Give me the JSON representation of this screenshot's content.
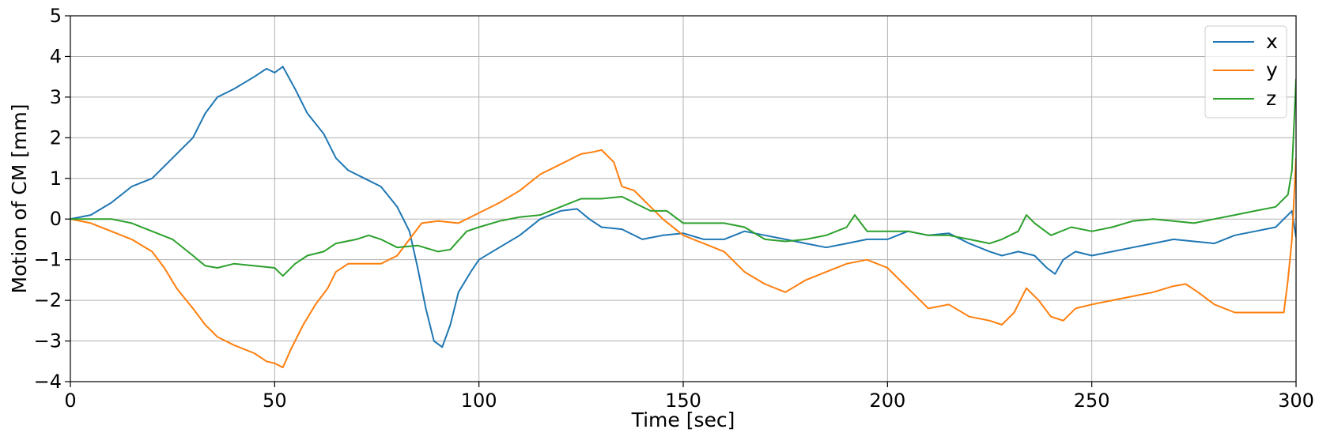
{
  "chart_data": {
    "type": "line",
    "xlabel": "Time [sec]",
    "ylabel": "Motion of CM [mm]",
    "xlim": [
      0,
      300
    ],
    "ylim": [
      -4,
      5
    ],
    "xticks": [
      0,
      50,
      100,
      150,
      200,
      250,
      300
    ],
    "yticks": [
      -4,
      -3,
      -2,
      -1,
      0,
      1,
      2,
      3,
      4,
      5
    ],
    "xtick_labels": [
      "0",
      "50",
      "100",
      "150",
      "200",
      "250",
      "300"
    ],
    "ytick_labels": [
      "−4",
      "−3",
      "−2",
      "−1",
      "0",
      "1",
      "2",
      "3",
      "4",
      "5"
    ],
    "grid": true,
    "legend_position": "top-right",
    "series": [
      {
        "name": "x",
        "color": "#1f77b4",
        "points": [
          [
            0,
            0
          ],
          [
            5,
            0.1
          ],
          [
            10,
            0.4
          ],
          [
            15,
            0.8
          ],
          [
            20,
            1.0
          ],
          [
            25,
            1.5
          ],
          [
            30,
            2.0
          ],
          [
            33,
            2.6
          ],
          [
            36,
            3.0
          ],
          [
            40,
            3.2
          ],
          [
            45,
            3.5
          ],
          [
            48,
            3.7
          ],
          [
            50,
            3.6
          ],
          [
            52,
            3.75
          ],
          [
            55,
            3.2
          ],
          [
            58,
            2.6
          ],
          [
            62,
            2.1
          ],
          [
            65,
            1.5
          ],
          [
            68,
            1.2
          ],
          [
            72,
            1.0
          ],
          [
            76,
            0.8
          ],
          [
            80,
            0.3
          ],
          [
            83,
            -0.3
          ],
          [
            85,
            -1.2
          ],
          [
            87,
            -2.2
          ],
          [
            89,
            -3.0
          ],
          [
            91,
            -3.15
          ],
          [
            93,
            -2.6
          ],
          [
            95,
            -1.8
          ],
          [
            98,
            -1.3
          ],
          [
            100,
            -1.0
          ],
          [
            105,
            -0.7
          ],
          [
            110,
            -0.4
          ],
          [
            115,
            0.0
          ],
          [
            120,
            0.2
          ],
          [
            124,
            0.25
          ],
          [
            127,
            0.0
          ],
          [
            130,
            -0.2
          ],
          [
            135,
            -0.25
          ],
          [
            140,
            -0.5
          ],
          [
            145,
            -0.4
          ],
          [
            150,
            -0.35
          ],
          [
            155,
            -0.5
          ],
          [
            160,
            -0.5
          ],
          [
            165,
            -0.3
          ],
          [
            170,
            -0.4
          ],
          [
            175,
            -0.5
          ],
          [
            180,
            -0.6
          ],
          [
            185,
            -0.7
          ],
          [
            190,
            -0.6
          ],
          [
            195,
            -0.5
          ],
          [
            200,
            -0.5
          ],
          [
            205,
            -0.3
          ],
          [
            210,
            -0.4
          ],
          [
            215,
            -0.35
          ],
          [
            220,
            -0.6
          ],
          [
            225,
            -0.8
          ],
          [
            228,
            -0.9
          ],
          [
            232,
            -0.8
          ],
          [
            236,
            -0.9
          ],
          [
            239,
            -1.2
          ],
          [
            241,
            -1.35
          ],
          [
            243,
            -1.0
          ],
          [
            246,
            -0.8
          ],
          [
            250,
            -0.9
          ],
          [
            255,
            -0.8
          ],
          [
            260,
            -0.7
          ],
          [
            265,
            -0.6
          ],
          [
            270,
            -0.5
          ],
          [
            275,
            -0.55
          ],
          [
            280,
            -0.6
          ],
          [
            285,
            -0.4
          ],
          [
            290,
            -0.3
          ],
          [
            295,
            -0.2
          ],
          [
            298,
            0.1
          ],
          [
            299,
            0.2
          ],
          [
            300,
            -0.45
          ]
        ]
      },
      {
        "name": "y",
        "color": "#ff7f0e",
        "points": [
          [
            0,
            0
          ],
          [
            5,
            -0.1
          ],
          [
            10,
            -0.3
          ],
          [
            15,
            -0.5
          ],
          [
            20,
            -0.8
          ],
          [
            23,
            -1.2
          ],
          [
            26,
            -1.7
          ],
          [
            30,
            -2.2
          ],
          [
            33,
            -2.6
          ],
          [
            36,
            -2.9
          ],
          [
            40,
            -3.1
          ],
          [
            45,
            -3.3
          ],
          [
            48,
            -3.5
          ],
          [
            50,
            -3.55
          ],
          [
            52,
            -3.65
          ],
          [
            54,
            -3.2
          ],
          [
            57,
            -2.6
          ],
          [
            60,
            -2.1
          ],
          [
            63,
            -1.7
          ],
          [
            65,
            -1.3
          ],
          [
            68,
            -1.1
          ],
          [
            72,
            -1.1
          ],
          [
            76,
            -1.1
          ],
          [
            80,
            -0.9
          ],
          [
            83,
            -0.5
          ],
          [
            86,
            -0.1
          ],
          [
            90,
            -0.05
          ],
          [
            95,
            -0.1
          ],
          [
            100,
            0.15
          ],
          [
            105,
            0.4
          ],
          [
            110,
            0.7
          ],
          [
            115,
            1.1
          ],
          [
            120,
            1.35
          ],
          [
            125,
            1.6
          ],
          [
            128,
            1.65
          ],
          [
            130,
            1.7
          ],
          [
            133,
            1.4
          ],
          [
            135,
            0.8
          ],
          [
            138,
            0.7
          ],
          [
            142,
            0.3
          ],
          [
            145,
            0.0
          ],
          [
            150,
            -0.4
          ],
          [
            155,
            -0.6
          ],
          [
            160,
            -0.8
          ],
          [
            165,
            -1.3
          ],
          [
            170,
            -1.6
          ],
          [
            175,
            -1.8
          ],
          [
            180,
            -1.5
          ],
          [
            185,
            -1.3
          ],
          [
            190,
            -1.1
          ],
          [
            195,
            -1.0
          ],
          [
            200,
            -1.2
          ],
          [
            203,
            -1.5
          ],
          [
            206,
            -1.8
          ],
          [
            210,
            -2.2
          ],
          [
            215,
            -2.1
          ],
          [
            220,
            -2.4
          ],
          [
            225,
            -2.5
          ],
          [
            228,
            -2.6
          ],
          [
            231,
            -2.3
          ],
          [
            234,
            -1.7
          ],
          [
            237,
            -2.0
          ],
          [
            240,
            -2.4
          ],
          [
            243,
            -2.5
          ],
          [
            246,
            -2.2
          ],
          [
            250,
            -2.1
          ],
          [
            255,
            -2.0
          ],
          [
            260,
            -1.9
          ],
          [
            265,
            -1.8
          ],
          [
            270,
            -1.65
          ],
          [
            273,
            -1.6
          ],
          [
            276,
            -1.8
          ],
          [
            280,
            -2.1
          ],
          [
            285,
            -2.3
          ],
          [
            290,
            -2.3
          ],
          [
            295,
            -2.3
          ],
          [
            297,
            -2.3
          ],
          [
            298,
            -1.5
          ],
          [
            299,
            -0.5
          ],
          [
            300,
            1.5
          ]
        ]
      },
      {
        "name": "z",
        "color": "#2ca02c",
        "points": [
          [
            0,
            0
          ],
          [
            5,
            0.0
          ],
          [
            10,
            0.0
          ],
          [
            15,
            -0.1
          ],
          [
            20,
            -0.3
          ],
          [
            25,
            -0.5
          ],
          [
            30,
            -0.9
          ],
          [
            33,
            -1.15
          ],
          [
            36,
            -1.2
          ],
          [
            40,
            -1.1
          ],
          [
            45,
            -1.15
          ],
          [
            50,
            -1.2
          ],
          [
            52,
            -1.4
          ],
          [
            55,
            -1.1
          ],
          [
            58,
            -0.9
          ],
          [
            62,
            -0.8
          ],
          [
            65,
            -0.6
          ],
          [
            70,
            -0.5
          ],
          [
            73,
            -0.4
          ],
          [
            76,
            -0.5
          ],
          [
            80,
            -0.7
          ],
          [
            85,
            -0.65
          ],
          [
            90,
            -0.8
          ],
          [
            93,
            -0.75
          ],
          [
            97,
            -0.3
          ],
          [
            100,
            -0.2
          ],
          [
            105,
            -0.05
          ],
          [
            110,
            0.05
          ],
          [
            115,
            0.1
          ],
          [
            120,
            0.3
          ],
          [
            125,
            0.5
          ],
          [
            130,
            0.5
          ],
          [
            135,
            0.55
          ],
          [
            138,
            0.4
          ],
          [
            142,
            0.2
          ],
          [
            146,
            0.2
          ],
          [
            150,
            -0.1
          ],
          [
            155,
            -0.1
          ],
          [
            160,
            -0.1
          ],
          [
            165,
            -0.2
          ],
          [
            170,
            -0.5
          ],
          [
            175,
            -0.55
          ],
          [
            180,
            -0.5
          ],
          [
            185,
            -0.4
          ],
          [
            190,
            -0.2
          ],
          [
            192,
            0.1
          ],
          [
            195,
            -0.3
          ],
          [
            200,
            -0.3
          ],
          [
            205,
            -0.3
          ],
          [
            210,
            -0.4
          ],
          [
            215,
            -0.4
          ],
          [
            220,
            -0.5
          ],
          [
            225,
            -0.6
          ],
          [
            228,
            -0.5
          ],
          [
            232,
            -0.3
          ],
          [
            234,
            0.1
          ],
          [
            236,
            -0.1
          ],
          [
            240,
            -0.4
          ],
          [
            245,
            -0.2
          ],
          [
            250,
            -0.3
          ],
          [
            255,
            -0.2
          ],
          [
            260,
            -0.05
          ],
          [
            265,
            0.0
          ],
          [
            270,
            -0.05
          ],
          [
            275,
            -0.1
          ],
          [
            280,
            0.0
          ],
          [
            285,
            0.1
          ],
          [
            290,
            0.2
          ],
          [
            295,
            0.3
          ],
          [
            298,
            0.6
          ],
          [
            299,
            1.2
          ],
          [
            300,
            3.45
          ]
        ]
      }
    ]
  }
}
